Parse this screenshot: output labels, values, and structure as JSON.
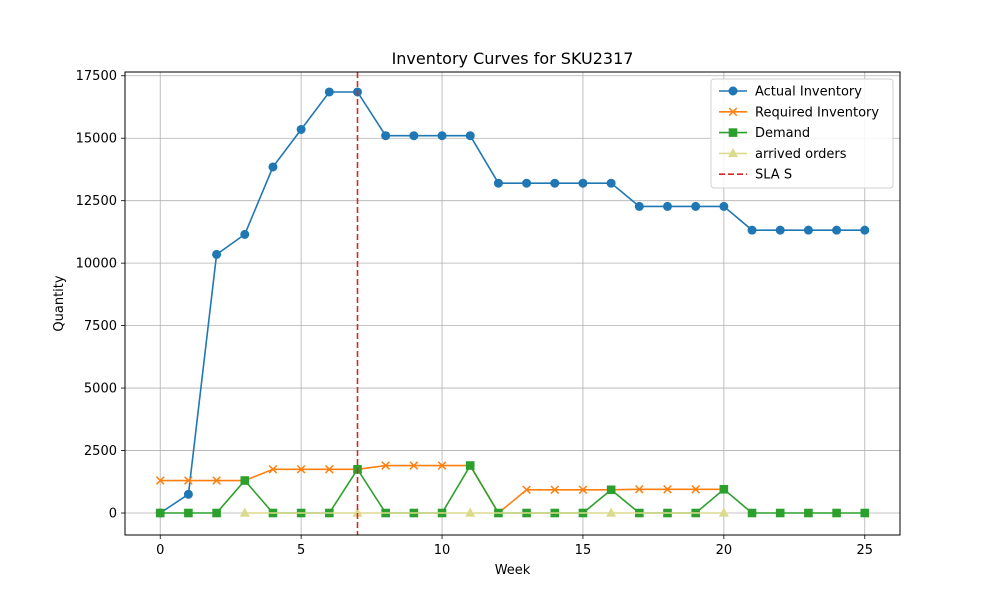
{
  "chart_data": {
    "type": "line",
    "title": "Inventory Curves for SKU2317",
    "xlabel": "Week",
    "ylabel": "Quantity",
    "xlim": [
      -1.25,
      26.25
    ],
    "ylim": [
      -880,
      17650
    ],
    "xticks": [
      0,
      5,
      10,
      15,
      20,
      25
    ],
    "yticks": [
      0,
      2500,
      5000,
      7500,
      10000,
      12500,
      15000,
      17500
    ],
    "grid": true,
    "legend_position": "top-right",
    "series": [
      {
        "name": "Actual Inventory",
        "color": "#1f77b4",
        "marker": "circle",
        "x": [
          0,
          1,
          2,
          3,
          4,
          5,
          6,
          7,
          8,
          9,
          10,
          11,
          12,
          13,
          14,
          15,
          16,
          17,
          18,
          19,
          20,
          21,
          22,
          23,
          24,
          25
        ],
        "values": [
          0,
          750,
          10350,
          11150,
          13850,
          15350,
          16850,
          16850,
          15100,
          15100,
          15100,
          15100,
          13200,
          13200,
          13200,
          13200,
          13200,
          12270,
          12270,
          12270,
          12270,
          11320,
          11320,
          11320,
          11320,
          11320
        ]
      },
      {
        "name": "Required Inventory",
        "color": "#ff7f0e",
        "marker": "x",
        "x": [
          0,
          1,
          2,
          3,
          4,
          5,
          6,
          7,
          8,
          9,
          10,
          11,
          12,
          13,
          14,
          15,
          16,
          17,
          18,
          19,
          20
        ],
        "values": [
          1300,
          1300,
          1300,
          1300,
          1750,
          1750,
          1750,
          1750,
          1900,
          1900,
          1900,
          1900,
          0,
          930,
          930,
          930,
          930,
          950,
          950,
          950,
          950
        ]
      },
      {
        "name": "Demand",
        "color": "#2ca02c",
        "marker": "square",
        "x": [
          0,
          1,
          2,
          3,
          4,
          5,
          6,
          7,
          8,
          9,
          10,
          11,
          12,
          13,
          14,
          15,
          16,
          17,
          18,
          19,
          20,
          21,
          22,
          23,
          24,
          25
        ],
        "values": [
          0,
          0,
          0,
          1300,
          0,
          0,
          0,
          1750,
          0,
          0,
          0,
          1900,
          0,
          0,
          0,
          0,
          930,
          0,
          0,
          0,
          950,
          0,
          0,
          0,
          0,
          0
        ]
      },
      {
        "name": "arrived orders",
        "color": "#dbdb8d",
        "marker": "triangle",
        "x": [
          3,
          7,
          11,
          16,
          20
        ],
        "values": [
          0,
          0,
          0,
          0,
          0
        ]
      }
    ],
    "vlines": [
      {
        "name": "SLA S",
        "x": 7,
        "color": "#d62728",
        "style": "dashed"
      }
    ]
  }
}
